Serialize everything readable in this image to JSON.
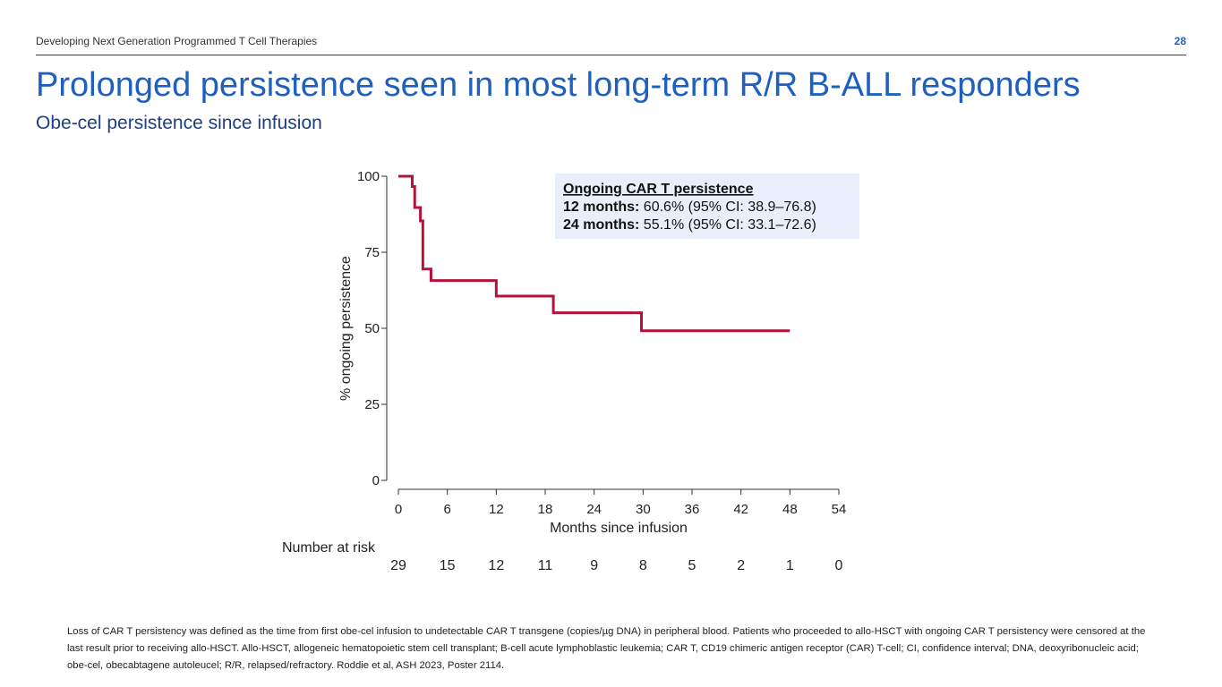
{
  "header": {
    "text": "Developing Next Generation Programmed T Cell Therapies",
    "page_number": "28"
  },
  "title": "Prolonged persistence seen in most long-term R/R B-ALL responders",
  "subtitle": "Obe-cel persistence since infusion",
  "colors": {
    "accent_blue": "#1f5fbf",
    "curve": "#b5123a",
    "callout_bg": "#e8eefa"
  },
  "chart_data": {
    "type": "line",
    "style": "kaplan-meier-step",
    "xlabel": "Months since infusion",
    "ylabel": "% ongoing persistence",
    "xlim": [
      0,
      54
    ],
    "ylim": [
      0,
      100
    ],
    "xticks": [
      0,
      6,
      12,
      18,
      24,
      30,
      36,
      42,
      48,
      54
    ],
    "yticks": [
      0,
      25,
      50,
      75,
      100
    ],
    "series": [
      {
        "name": "Ongoing CAR T persistence",
        "x": [
          0,
          1.7,
          1.7,
          2.0,
          2.0,
          2.7,
          2.7,
          3.0,
          3.0,
          4.0,
          4.0,
          12.0,
          12.0,
          19.0,
          19.0,
          29.8,
          29.8,
          48.0
        ],
        "y": [
          100,
          100,
          96.6,
          96.6,
          89.7,
          89.7,
          85.3,
          85.3,
          69.5,
          69.5,
          65.7,
          65.7,
          60.6,
          60.6,
          55.1,
          55.1,
          49.2,
          49.2
        ]
      }
    ],
    "callout": {
      "heading": "Ongoing CAR T persistence",
      "rows": [
        {
          "label": "12 months:",
          "value": "60.6% (95% CI: 38.9–76.8)"
        },
        {
          "label": "24 months:",
          "value": "55.1% (95% CI: 33.1–72.6)"
        }
      ]
    },
    "risk_table": {
      "label": "Number at risk",
      "times": [
        0,
        6,
        12,
        18,
        24,
        30,
        36,
        42,
        48,
        54
      ],
      "counts": [
        29,
        15,
        12,
        11,
        9,
        8,
        5,
        2,
        1,
        0
      ]
    }
  },
  "footnote": "Loss of CAR T persistency was defined as the time from first obe-cel infusion to undetectable CAR T transgene (copies/µg DNA) in peripheral blood. Patients who proceeded to allo-HSCT with ongoing CAR T persistency were censored at the last result prior to receiving allo-HSCT.  Allo-HSCT, allogeneic hematopoietic stem cell transplant; B-cell acute lymphoblastic leukemia; CAR T, CD19 chimeric antigen receptor (CAR) T-cell; CI, confidence interval; DNA, deoxyribonucleic acid; obe-cel, obecabtagene autoleucel; R/R, relapsed/refractory. Roddie et al, ASH 2023, Poster 2114."
}
